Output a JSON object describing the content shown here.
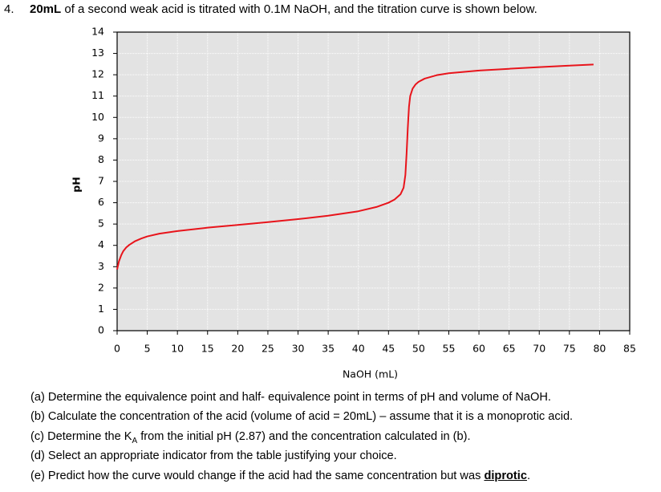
{
  "question": {
    "number": "4.",
    "bold": "20mL",
    "text": " of a second weak acid is titrated with 0.1M NaOH, and the titration curve is shown below."
  },
  "chart_data": {
    "type": "line",
    "x": [
      0,
      0.3,
      0.7,
      1,
      1.5,
      2,
      3,
      4,
      5,
      7,
      10,
      15,
      20,
      25,
      30,
      35,
      40,
      43,
      45,
      46,
      47,
      47.5,
      47.8,
      48,
      48.2,
      48.4,
      48.6,
      49,
      49.5,
      50,
      51,
      53,
      55,
      60,
      65,
      70,
      75,
      79
    ],
    "values": [
      2.87,
      3.25,
      3.55,
      3.72,
      3.9,
      4.02,
      4.2,
      4.32,
      4.42,
      4.55,
      4.67,
      4.83,
      4.96,
      5.09,
      5.23,
      5.39,
      5.6,
      5.8,
      6.0,
      6.15,
      6.4,
      6.7,
      7.3,
      8.3,
      9.5,
      10.5,
      11.0,
      11.35,
      11.55,
      11.67,
      11.82,
      11.98,
      12.07,
      12.2,
      12.28,
      12.36,
      12.43,
      12.48
    ],
    "color": "#e8141b",
    "xlabel": "NaOH (mL)",
    "ylabel": "pH",
    "xlim": [
      0,
      85
    ],
    "ylim": [
      0,
      14
    ],
    "xticks": [
      0,
      5,
      10,
      15,
      20,
      25,
      30,
      35,
      40,
      45,
      50,
      55,
      60,
      65,
      70,
      75,
      80,
      85
    ],
    "yticks": [
      0,
      1,
      2,
      3,
      4,
      5,
      6,
      7,
      8,
      9,
      10,
      11,
      12,
      13,
      14
    ],
    "grid": true
  },
  "parts": [
    {
      "text": "(a) Determine the equivalence point and half- equivalence point in terms of pH and volume of NaOH."
    },
    {
      "text": "(b) Calculate the concentration of the acid (volume of acid = 20mL) – assume that it is a monoprotic acid."
    },
    {
      "text": "(c) Determine the K",
      "sub": "A",
      "rest": " from the initial pH (2.87) and the concentration calculated in (b)."
    },
    {
      "text": "(d) Select an appropriate indicator from the table justifying your choice."
    },
    {
      "text": "(e) Predict how the curve would change if the acid had the same concentration but was ",
      "bold": "diprotic",
      "rest": "."
    }
  ]
}
